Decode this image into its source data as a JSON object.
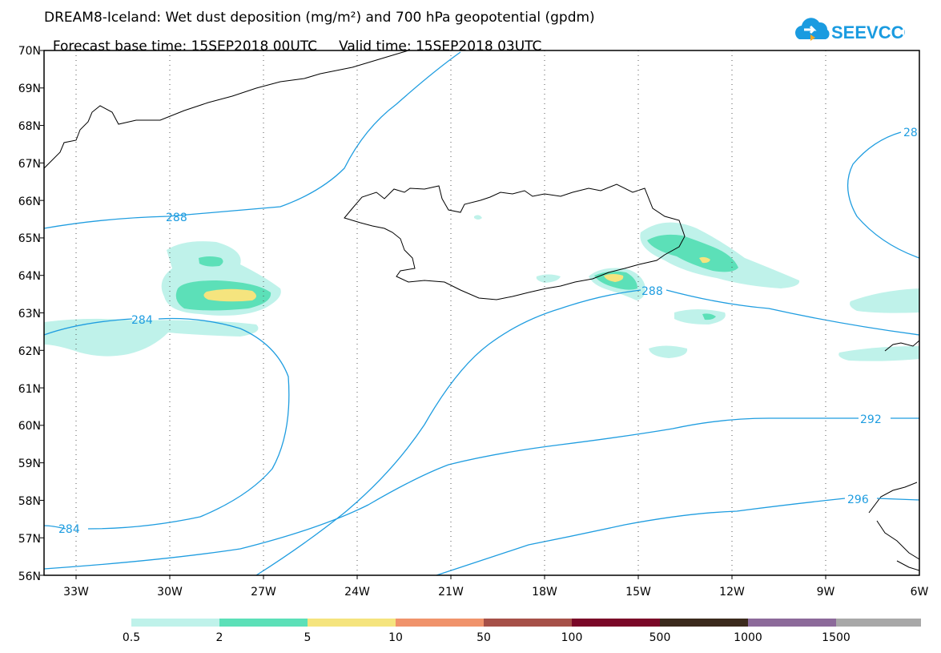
{
  "title": {
    "line1": "DREAM8-Iceland: Wet dust deposition (mg/m²) and 700 hPa geopotential (gpdm)",
    "line2_base": "Forecast base time: 15SEP2018 00UTC",
    "line2_valid": "Valid time: 15SEP2018 03UTC"
  },
  "logo": {
    "text": "SEEVCCC",
    "icon": "cloud-arrow-icon",
    "color": "#1a9be0"
  },
  "map": {
    "lat_ticks": [
      "70N",
      "69N",
      "68N",
      "67N",
      "66N",
      "65N",
      "64N",
      "63N",
      "62N",
      "61N",
      "60N",
      "59N",
      "58N",
      "57N",
      "56N"
    ],
    "lon_ticks": [
      "33W",
      "30W",
      "27W",
      "24W",
      "21W",
      "18W",
      "15W",
      "12W",
      "9W",
      "6W"
    ],
    "contour_color": "#1f9de0",
    "contour_labels": [
      "288",
      "284",
      "288",
      "28",
      "292",
      "284",
      "296"
    ]
  },
  "legend": {
    "colors": [
      "#bff2ea",
      "#5ce0b8",
      "#f5e47e",
      "#f0936b",
      "#a65048",
      "#7a0828",
      "#3b2a1c",
      "#8c6a9a",
      "#a8a8a8"
    ],
    "labels": [
      "0.5",
      "2",
      "5",
      "10",
      "50",
      "100",
      "500",
      "1000",
      "1500"
    ]
  }
}
